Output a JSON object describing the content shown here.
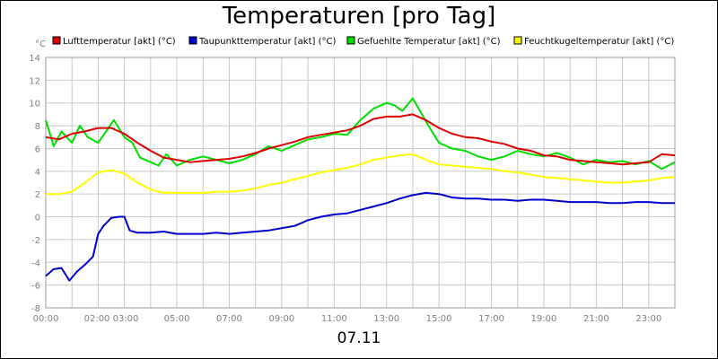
{
  "title": "Temperaturen [pro Tag]",
  "date_label": "07.11",
  "chart_data": {
    "type": "line",
    "title": "Temperaturen [pro Tag]",
    "xlabel": "07.11",
    "ylabel": "°C",
    "ylim": [
      -8,
      14
    ],
    "yticks": [
      "14",
      "12",
      "10",
      "8",
      "6",
      "4",
      "2",
      "0",
      "-2",
      "-4",
      "-6",
      "-8"
    ],
    "ytick_values": [
      14,
      12,
      10,
      8,
      6,
      4,
      2,
      0,
      -2,
      -4,
      -6,
      -8
    ],
    "xlim": [
      0,
      24
    ],
    "xticks": [
      {
        "label": "00:00",
        "hour": 0
      },
      {
        "label": "02:00 03:00",
        "hour": 2.5
      },
      {
        "label": "05:00",
        "hour": 5
      },
      {
        "label": "07:00",
        "hour": 7
      },
      {
        "label": "09:00",
        "hour": 9
      },
      {
        "label": "11:00",
        "hour": 11
      },
      {
        "label": "13:00",
        "hour": 13
      },
      {
        "label": "15:00",
        "hour": 15
      },
      {
        "label": "17:00",
        "hour": 17
      },
      {
        "label": "19:00",
        "hour": 19
      },
      {
        "label": "21:00",
        "hour": 21
      },
      {
        "label": "23:00",
        "hour": 23
      }
    ],
    "grid": true,
    "legend_position": "top",
    "series": [
      {
        "name": "Lufttemperatur [akt] (°C)",
        "color": "#dd0000",
        "x": [
          0,
          0.5,
          1,
          1.5,
          2,
          2.5,
          3,
          3.5,
          4,
          4.5,
          5,
          5.5,
          6,
          6.5,
          7,
          7.5,
          8,
          8.5,
          9,
          9.5,
          10,
          10.5,
          11,
          11.5,
          12,
          12.5,
          13,
          13.5,
          14,
          14.5,
          15,
          15.5,
          16,
          16.5,
          17,
          17.5,
          18,
          18.5,
          19,
          19.5,
          20,
          20.5,
          21,
          21.5,
          22,
          22.5,
          23,
          23.5,
          24
        ],
        "values": [
          7.0,
          6.8,
          7.3,
          7.5,
          7.8,
          7.8,
          7.3,
          6.5,
          5.8,
          5.2,
          5.0,
          4.8,
          4.9,
          5.0,
          5.1,
          5.3,
          5.6,
          6.0,
          6.3,
          6.6,
          7.0,
          7.2,
          7.4,
          7.6,
          8.0,
          8.6,
          8.8,
          8.8,
          9.0,
          8.5,
          7.8,
          7.3,
          7.0,
          6.9,
          6.6,
          6.4,
          6.0,
          5.8,
          5.4,
          5.3,
          5.0,
          4.9,
          4.8,
          4.7,
          4.6,
          4.7,
          4.8,
          5.5,
          5.4
        ]
      },
      {
        "name": "Taupunkttemperatur [akt] (°C)",
        "color": "#0000cc",
        "x": [
          0,
          0.3,
          0.6,
          0.9,
          1.2,
          1.5,
          1.8,
          2.0,
          2.2,
          2.5,
          2.8,
          3.0,
          3.2,
          3.5,
          4,
          4.5,
          5,
          5.5,
          6,
          6.5,
          7,
          7.5,
          8,
          8.5,
          9,
          9.5,
          10,
          10.5,
          11,
          11.5,
          12,
          12.5,
          13,
          13.5,
          14,
          14.5,
          15,
          15.5,
          16,
          16.5,
          17,
          17.5,
          18,
          18.5,
          19,
          19.5,
          20,
          20.5,
          21,
          21.5,
          22,
          22.5,
          23,
          23.5,
          24
        ],
        "values": [
          -5.2,
          -4.6,
          -4.5,
          -5.6,
          -4.8,
          -4.2,
          -3.5,
          -1.5,
          -0.8,
          -0.1,
          0.0,
          0.0,
          -1.2,
          -1.4,
          -1.4,
          -1.3,
          -1.5,
          -1.5,
          -1.5,
          -1.4,
          -1.5,
          -1.4,
          -1.3,
          -1.2,
          -1.0,
          -0.8,
          -0.3,
          0.0,
          0.2,
          0.3,
          0.6,
          0.9,
          1.2,
          1.6,
          1.9,
          2.1,
          2.0,
          1.7,
          1.6,
          1.6,
          1.5,
          1.5,
          1.4,
          1.5,
          1.5,
          1.4,
          1.3,
          1.3,
          1.3,
          1.2,
          1.2,
          1.3,
          1.3,
          1.2,
          1.2
        ]
      },
      {
        "name": "Gefuehlte Temperatur [akt] (°C)",
        "color": "#00dd00",
        "x": [
          0,
          0.3,
          0.6,
          1,
          1.3,
          1.6,
          2,
          2.3,
          2.6,
          3,
          3.3,
          3.6,
          4,
          4.3,
          4.6,
          5,
          5.5,
          6,
          6.5,
          7,
          7.5,
          8,
          8.5,
          9,
          9.5,
          10,
          10.5,
          11,
          11.5,
          12,
          12.5,
          13,
          13.3,
          13.6,
          14,
          14.3,
          14.6,
          15,
          15.5,
          16,
          16.5,
          17,
          17.5,
          18,
          18.5,
          19,
          19.5,
          20,
          20.5,
          21,
          21.5,
          22,
          22.5,
          23,
          23.5,
          24
        ],
        "values": [
          8.5,
          6.2,
          7.5,
          6.5,
          8.0,
          7.0,
          6.5,
          7.5,
          8.5,
          7.0,
          6.5,
          5.2,
          4.8,
          4.5,
          5.5,
          4.5,
          5.0,
          5.3,
          5.0,
          4.7,
          5.0,
          5.5,
          6.2,
          5.8,
          6.3,
          6.8,
          7.0,
          7.3,
          7.2,
          8.5,
          9.5,
          10.0,
          9.8,
          9.3,
          10.4,
          9.2,
          8.0,
          6.5,
          6.0,
          5.8,
          5.3,
          5.0,
          5.3,
          5.8,
          5.5,
          5.3,
          5.6,
          5.2,
          4.6,
          5.0,
          4.8,
          4.9,
          4.6,
          4.9,
          4.2,
          4.8
        ]
      },
      {
        "name": "Feuchtkugeltemperatur [akt] (°C)",
        "color": "#ffff00",
        "x": [
          0,
          0.5,
          1,
          1.5,
          2,
          2.5,
          3,
          3.5,
          4,
          4.5,
          5,
          5.5,
          6,
          6.5,
          7,
          7.5,
          8,
          8.5,
          9,
          9.5,
          10,
          10.5,
          11,
          11.5,
          12,
          12.5,
          13,
          13.5,
          14,
          14.5,
          15,
          15.5,
          16,
          16.5,
          17,
          17.5,
          18,
          18.5,
          19,
          19.5,
          20,
          20.5,
          21,
          21.5,
          22,
          22.5,
          23,
          23.5,
          24
        ],
        "values": [
          2.0,
          2.0,
          2.2,
          3.0,
          3.9,
          4.1,
          3.8,
          3.0,
          2.4,
          2.1,
          2.1,
          2.1,
          2.1,
          2.2,
          2.2,
          2.3,
          2.5,
          2.8,
          3.0,
          3.3,
          3.6,
          3.9,
          4.1,
          4.3,
          4.6,
          5.0,
          5.2,
          5.4,
          5.5,
          5.0,
          4.6,
          4.5,
          4.4,
          4.3,
          4.2,
          4.0,
          3.9,
          3.7,
          3.5,
          3.4,
          3.3,
          3.2,
          3.1,
          3.0,
          3.0,
          3.1,
          3.2,
          3.4,
          3.5
        ]
      }
    ]
  }
}
